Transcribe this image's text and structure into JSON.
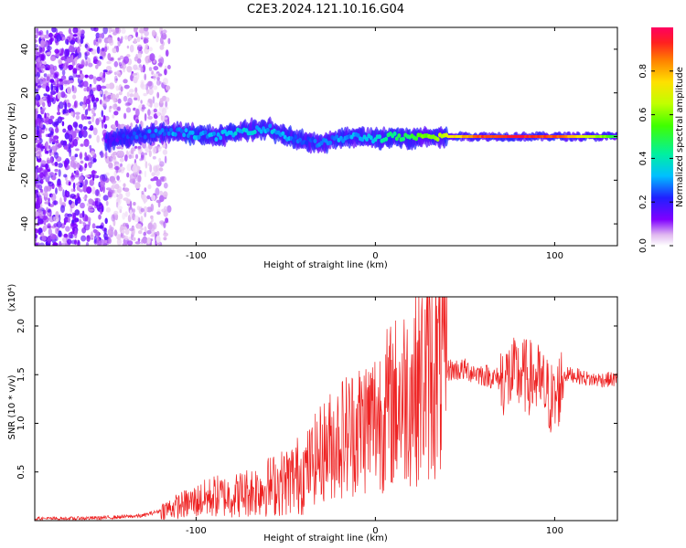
{
  "title": "C2E3.2024.121.10.16.G04",
  "colorbar": {
    "label": "Normalized spectral amplitude",
    "ticks": [
      "0.0",
      "0.2",
      "0.4",
      "0.6",
      "0.8"
    ],
    "range": [
      0,
      1
    ]
  },
  "chart_data": [
    {
      "type": "heatmap",
      "title": "C2E3.2024.121.10.16.G04",
      "xlabel": "Height of straight line (km)",
      "ylabel": "Frequency (Hz)",
      "xlim": [
        -190,
        135
      ],
      "ylim": [
        -50,
        50
      ],
      "xticks": [
        -100,
        0,
        100
      ],
      "xtick_labels": [
        "-100",
        "0",
        "100"
      ],
      "yticks": [
        -40,
        -20,
        0,
        20,
        40
      ],
      "ytick_labels": [
        "-40",
        "-20",
        "0",
        "20",
        "40"
      ],
      "colorbar_label": "Normalized spectral amplitude",
      "colorbar_range": [
        0,
        1
      ],
      "ridge": {
        "description_points_x": [
          -150,
          -130,
          -110,
          -90,
          -70,
          -60,
          -50,
          -40,
          -30,
          -20,
          -10,
          0,
          10,
          20,
          30,
          40,
          60,
          80,
          100,
          135
        ],
        "frequency": [
          -2,
          1,
          2,
          0,
          3,
          4,
          0,
          -2,
          -3,
          -1,
          0,
          -1,
          0,
          -1,
          0,
          0,
          0,
          0,
          0,
          0
        ],
        "amplitude": [
          0.15,
          0.25,
          0.3,
          0.3,
          0.35,
          0.3,
          0.3,
          0.25,
          0.25,
          0.3,
          0.3,
          0.35,
          0.45,
          0.5,
          0.6,
          0.7,
          0.9,
          0.95,
          0.9,
          0.5
        ]
      }
    },
    {
      "type": "line",
      "xlabel": "Height of straight line (km)",
      "ylabel": "SNR (10 * v/v)",
      "y_multiplier": "(x10⁴)",
      "xlim": [
        -190,
        135
      ],
      "ylim": [
        0,
        2.3
      ],
      "xticks": [
        -100,
        0,
        100
      ],
      "xtick_labels": [
        "-100",
        "0",
        "100"
      ],
      "yticks": [
        0.5,
        1.0,
        1.5,
        2.0
      ],
      "ytick_labels": [
        "0.5",
        "1.0",
        "1.5",
        "2.0"
      ],
      "series": [
        {
          "color": "#ee2222",
          "x": [
            -190,
            -170,
            -150,
            -130,
            -120,
            -110,
            -100,
            -90,
            -80,
            -70,
            -60,
            -50,
            -40,
            -30,
            -20,
            -10,
            0,
            10,
            20,
            30,
            40,
            50,
            60,
            70,
            80,
            90,
            100,
            105,
            110,
            120,
            135
          ],
          "y": [
            0.02,
            0.02,
            0.03,
            0.05,
            0.1,
            0.15,
            0.2,
            0.25,
            0.25,
            0.3,
            0.35,
            0.4,
            0.5,
            0.7,
            0.85,
            0.95,
            1.05,
            1.2,
            1.35,
            1.5,
            1.55,
            1.55,
            1.5,
            1.45,
            1.5,
            1.45,
            1.2,
            1.5,
            1.5,
            1.45,
            1.45
          ]
        }
      ]
    }
  ]
}
